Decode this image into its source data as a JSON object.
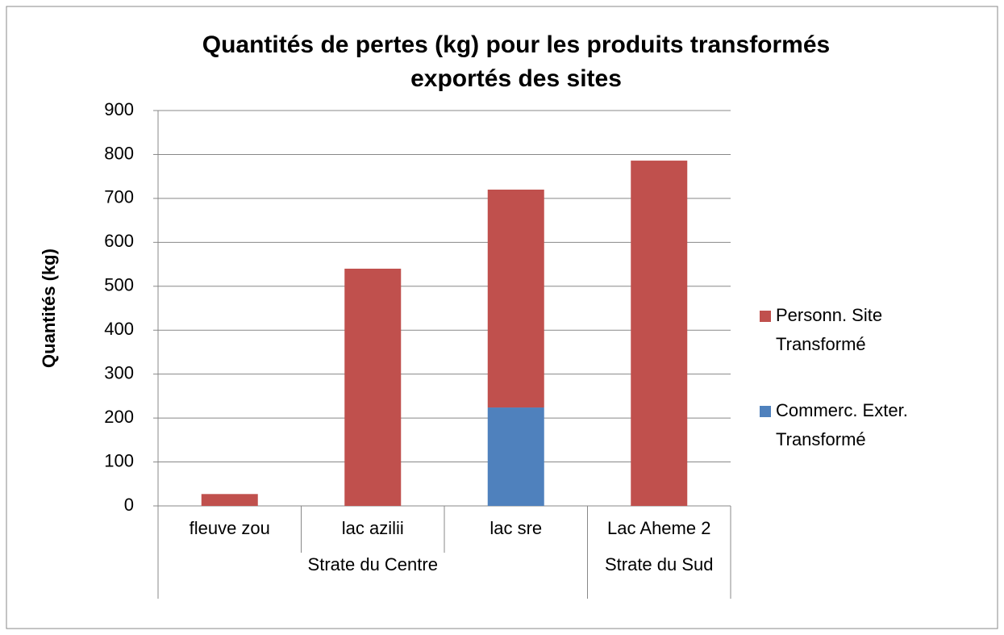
{
  "chart_data": {
    "type": "stacked_bar",
    "title": [
      "Quantités de pertes (kg) pour les produits transformés",
      "exportés des sites"
    ],
    "y_label": "Quantités (kg)",
    "categories": [
      "fleuve zou",
      "lac azilii",
      "lac sre",
      "Lac Aheme 2"
    ],
    "groups": [
      {
        "label": "Strate du Centre",
        "count": 3
      },
      {
        "label": "Strate du Sud",
        "count": 1
      }
    ],
    "series": [
      {
        "name": "Personn. Site Transformé",
        "color": "#c0504d",
        "values": [
          27,
          540,
          496,
          786
        ]
      },
      {
        "name": "Commerc. Exter. Transformé",
        "color": "#4f81bd",
        "values": [
          0,
          0,
          224,
          0
        ]
      }
    ],
    "ylim": [
      0,
      900
    ],
    "yticks": [
      0,
      100,
      200,
      300,
      400,
      500,
      600,
      700,
      800,
      900
    ],
    "grid": true,
    "legend": "right"
  }
}
